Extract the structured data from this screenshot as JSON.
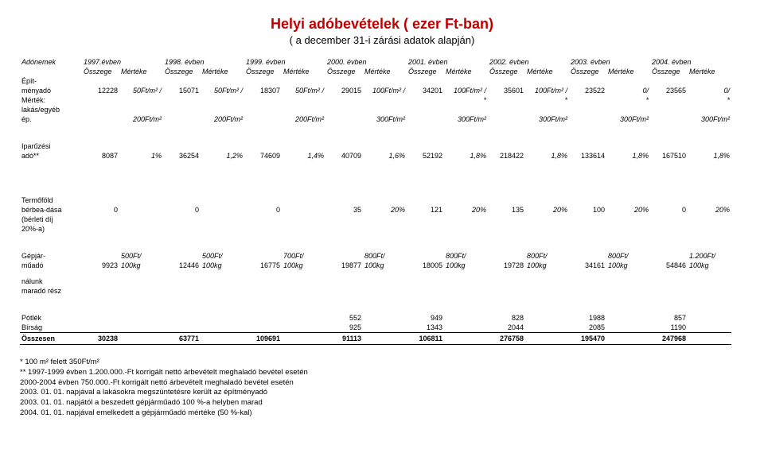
{
  "title": "Helyi adóbevételek ( ezer Ft-ban)",
  "subtitle": "( a december 31-i zárási adatok alapján)",
  "headers": {
    "col1": "Adónemek",
    "years": [
      "1997.évben",
      "1998. évben",
      "1999. évben",
      "2000. évben",
      "2001. évben",
      "2002. évben",
      "2003. évben",
      "2004. évben"
    ],
    "osszege": "Összege",
    "merteke": "Mértéke"
  },
  "rows": {
    "epitmenyado": {
      "label": "Épít-\nményadó",
      "values": [
        "12228",
        "15071",
        "18307",
        "29015",
        "34201",
        "35601",
        "23522",
        "23565"
      ],
      "rates": [
        "50Ft/m² /",
        "50Ft/m² /",
        "50Ft/m² /",
        "100Ft/m² /",
        "100Ft/m² /",
        "100Ft/m² /",
        "0/",
        "0/"
      ]
    },
    "mertek": {
      "label1": "Mérték:",
      "label2": "lakás/egyéb",
      "label3": "ép.",
      "stars": [
        "",
        "",
        "",
        "",
        "*",
        "*",
        "*",
        "*"
      ],
      "rates": [
        "200Ft/m²",
        "200Ft/m²",
        "200Ft/m²",
        "300Ft/m²",
        "300Ft/m²",
        "300Ft/m²",
        "300Ft/m²",
        "300Ft/m²"
      ]
    },
    "iparuzesi": {
      "label1": "Iparűzési",
      "label2": "adó**",
      "values": [
        "8087",
        "36254",
        "74609",
        "40709",
        "52192",
        "218422",
        "133614",
        "167510"
      ],
      "rates": [
        "1%",
        "1,2%",
        "1,4%",
        "1,6%",
        "1,8%",
        "1,8%",
        "1,8%",
        "1,8%"
      ]
    },
    "termofold": {
      "label1": "Termőföld",
      "label2": "bérbea-dása",
      "label3": "(bérleti díj",
      "label4": "20%-a)",
      "values": [
        "0",
        "0",
        "0",
        "35",
        "121",
        "135",
        "100",
        "0"
      ],
      "rates": [
        "",
        "",
        "",
        "20%",
        "20%",
        "20%",
        "20%",
        "20%"
      ]
    },
    "gepjarmuado": {
      "label1": "Gépjár-",
      "label2": "műadó",
      "values": [
        "9923",
        "12446",
        "16775",
        "19877",
        "18005",
        "19728",
        "34161",
        "54846"
      ],
      "rates_top": [
        "500Ft/",
        "500Ft/",
        "700Ft/",
        "800Ft/",
        "800Ft/",
        "800Ft/",
        "800Ft/",
        "1.200Ft/"
      ],
      "rates_bot": [
        "100kg",
        "100kg",
        "100kg",
        "100kg",
        "100kg",
        "100kg",
        "100kg",
        "100kg"
      ]
    },
    "nalunk": {
      "label1": "nálunk",
      "label2": "maradó rész"
    },
    "potlek": {
      "label": "Pótlék",
      "values": [
        "",
        "",
        "",
        "552",
        "949",
        "828",
        "1988",
        "857"
      ]
    },
    "birsag": {
      "label": "Bírság",
      "values": [
        "",
        "",
        "",
        "925",
        "1343",
        "2044",
        "2085",
        "1190"
      ]
    },
    "osszesen": {
      "label": "Összesen",
      "values": [
        "30238",
        "63771",
        "109691",
        "91113",
        "106811",
        "276758",
        "195470",
        "247968"
      ]
    }
  },
  "footnotes": [
    "* 100 m² felett 350Ft/m²",
    "** 1997-1999 évben 1.200.000.-Ft korrigált nettó árbevételt meghaladó bevétel esetén",
    "2000-2004 évben 750.000.-Ft korrigált nettó árbevételt meghaladó bevétel esetén",
    "2003. 01. 01. napjával a lakásokra megszüntetésre került az építményadó",
    "2003. 01. 01. napjától a beszedett gépjárműadó 100 %-a helyben marad",
    "2004. 01. 01. napjával emelkedett a gépjárműadó mértéke (50 %-kal)"
  ]
}
